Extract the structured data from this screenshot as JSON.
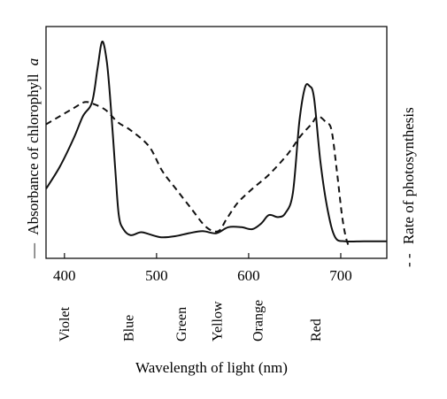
{
  "chart_data": {
    "type": "line",
    "xlabel": "Wavelength of light (nm)",
    "ylabel_left": "Absorbance of chlorophyll",
    "ylabel_left_italic": "a",
    "ylabel_right": "Rate of photosynthesis",
    "legend_left_marker": "—",
    "legend_right_marker": "- -",
    "xlim": [
      380,
      750
    ],
    "ylim": [
      0,
      100
    ],
    "x_ticks": [
      {
        "value": 400,
        "label": "400"
      },
      {
        "value": 500,
        "label": "500"
      },
      {
        "value": 600,
        "label": "600"
      },
      {
        "value": 700,
        "label": "700"
      }
    ],
    "color_bands": [
      {
        "label": "Violet",
        "x": 400
      },
      {
        "label": "Blue",
        "x": 470
      },
      {
        "label": "Green",
        "x": 527
      },
      {
        "label": "Yellow",
        "x": 566
      },
      {
        "label": "Orange",
        "x": 610
      },
      {
        "label": "Red",
        "x": 673
      }
    ],
    "series": [
      {
        "name": "Absorbance of chlorophyll a",
        "style": "solid",
        "color": "#111111",
        "points": [
          [
            380,
            27
          ],
          [
            395,
            38
          ],
          [
            410,
            52
          ],
          [
            420,
            63
          ],
          [
            430,
            70
          ],
          [
            436,
            87
          ],
          [
            441,
            100
          ],
          [
            446,
            90
          ],
          [
            450,
            70
          ],
          [
            455,
            38
          ],
          [
            459,
            14
          ],
          [
            464,
            7
          ],
          [
            472,
            4
          ],
          [
            483,
            5.5
          ],
          [
            492,
            4.5
          ],
          [
            505,
            3
          ],
          [
            520,
            3.5
          ],
          [
            535,
            5
          ],
          [
            550,
            6
          ],
          [
            565,
            5
          ],
          [
            578,
            8
          ],
          [
            592,
            8
          ],
          [
            604,
            7
          ],
          [
            614,
            10
          ],
          [
            622,
            14
          ],
          [
            632,
            13
          ],
          [
            640,
            15
          ],
          [
            648,
            25
          ],
          [
            655,
            60
          ],
          [
            661,
            77
          ],
          [
            666,
            78
          ],
          [
            671,
            72
          ],
          [
            678,
            40
          ],
          [
            686,
            16
          ],
          [
            694,
            3
          ],
          [
            705,
            1
          ],
          [
            725,
            1
          ],
          [
            750,
            1
          ]
        ]
      },
      {
        "name": "Rate of photosynthesis",
        "style": "dashed",
        "color": "#111111",
        "points": [
          [
            380,
            59
          ],
          [
            395,
            63
          ],
          [
            410,
            67
          ],
          [
            422,
            70
          ],
          [
            432,
            69
          ],
          [
            445,
            66
          ],
          [
            458,
            60
          ],
          [
            472,
            56
          ],
          [
            492,
            48
          ],
          [
            506,
            36
          ],
          [
            521,
            27
          ],
          [
            538,
            17
          ],
          [
            554,
            8
          ],
          [
            567,
            6
          ],
          [
            576,
            12
          ],
          [
            588,
            20
          ],
          [
            604,
            27
          ],
          [
            622,
            34
          ],
          [
            642,
            44
          ],
          [
            656,
            53
          ],
          [
            668,
            59
          ],
          [
            675,
            63
          ],
          [
            684,
            60
          ],
          [
            690,
            56
          ],
          [
            696,
            35
          ],
          [
            701,
            15
          ],
          [
            705,
            4
          ],
          [
            709,
            -2
          ]
        ]
      }
    ]
  }
}
